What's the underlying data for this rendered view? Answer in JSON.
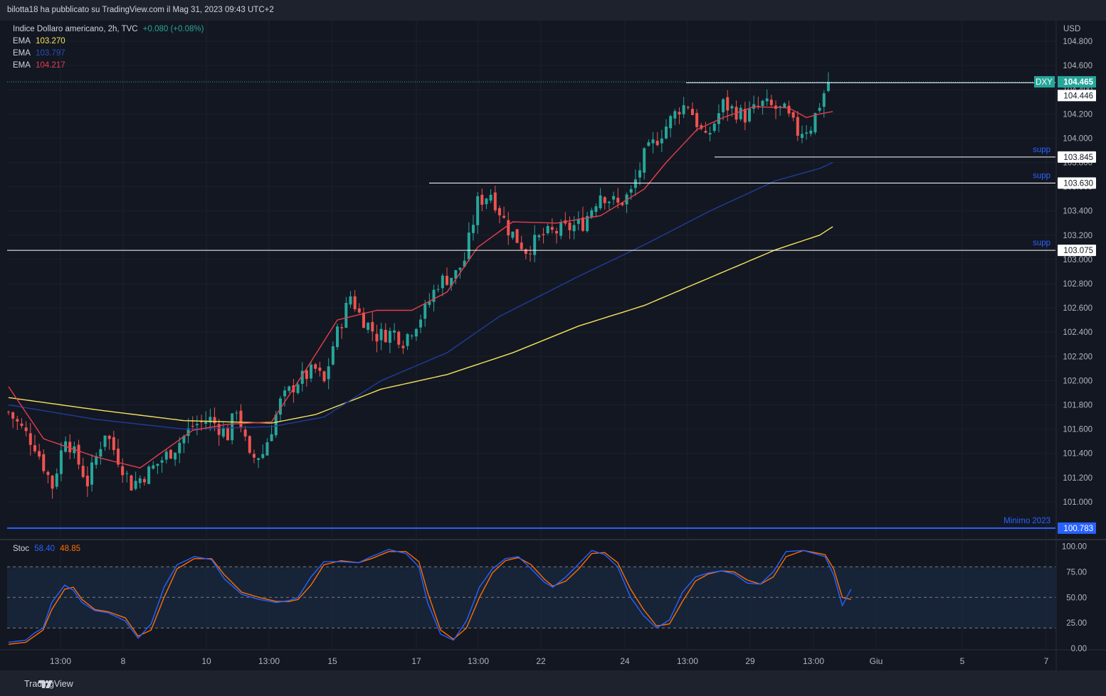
{
  "header": {
    "published_by": "bilotta18 ha pubblicato su TradingView.com il Mag 31, 2023 09:43 UTC+2"
  },
  "footer": {
    "brand": "TradingView"
  },
  "colors": {
    "background": "#131722",
    "up": "#26a69a",
    "down": "#ef5350",
    "ema_yellow": "#f5e35d",
    "ema_blue": "#1f3d9a",
    "ema_red": "#e53e4b",
    "stoch_k": "#2962ff",
    "stoch_d": "#ff6d00",
    "support": "#2962ff"
  },
  "legend": {
    "symbol": "Indice Dollaro americano, 2h, TVC",
    "change": "+0.080 (+0.08%)",
    "ema_label": "EMA",
    "ema1": "103.270",
    "ema2": "103.797",
    "ema3": "104.217"
  },
  "stoch_legend": {
    "label": "Stoc",
    "k": "58.40",
    "d": "48.85"
  },
  "chart_data": [
    {
      "type": "candlestick",
      "title": "Indice Dollaro americano, 2h, TVC",
      "currency": "USD",
      "ylim": [
        100.78,
        104.92
      ],
      "y_ticks": [
        "104.800",
        "104.600",
        "104.400",
        "104.200",
        "104.000",
        "103.800",
        "103.600",
        "103.400",
        "103.200",
        "103.000",
        "102.800",
        "102.600",
        "102.400",
        "102.200",
        "102.000",
        "101.800",
        "101.600",
        "101.400",
        "101.200",
        "101.000"
      ],
      "x_ticks": [
        "13:00",
        "8",
        "10",
        "13:00",
        "15",
        "17",
        "13:00",
        "22",
        "24",
        "13:00",
        "29",
        "13:00",
        "Giu",
        "5",
        "7"
      ],
      "price_label": {
        "symbol": "DXY",
        "last": "104.465",
        "line": "104.446"
      },
      "ema_anchor_points": {
        "ema_yellow": [
          [
            0,
            101.86
          ],
          [
            20,
            101.76
          ],
          [
            40,
            101.67
          ],
          [
            60,
            101.65
          ],
          [
            70,
            101.72
          ],
          [
            85,
            101.93
          ],
          [
            100,
            102.05
          ],
          [
            115,
            102.23
          ],
          [
            130,
            102.45
          ],
          [
            145,
            102.62
          ],
          [
            160,
            102.85
          ],
          [
            175,
            103.08
          ],
          [
            185,
            103.2
          ],
          [
            188,
            103.27
          ]
        ],
        "ema_blue": [
          [
            0,
            101.8
          ],
          [
            20,
            101.68
          ],
          [
            40,
            101.6
          ],
          [
            60,
            101.62
          ],
          [
            72,
            101.7
          ],
          [
            85,
            102.0
          ],
          [
            100,
            102.23
          ],
          [
            112,
            102.53
          ],
          [
            130,
            102.86
          ],
          [
            145,
            103.12
          ],
          [
            160,
            103.4
          ],
          [
            175,
            103.65
          ],
          [
            185,
            103.75
          ],
          [
            188,
            103.8
          ]
        ],
        "ema_red": [
          [
            0,
            101.95
          ],
          [
            8,
            101.52
          ],
          [
            20,
            101.37
          ],
          [
            30,
            101.28
          ],
          [
            42,
            101.59
          ],
          [
            50,
            101.64
          ],
          [
            60,
            101.66
          ],
          [
            68,
            102.1
          ],
          [
            75,
            102.5
          ],
          [
            84,
            102.58
          ],
          [
            92,
            102.58
          ],
          [
            100,
            102.73
          ],
          [
            107,
            103.1
          ],
          [
            115,
            103.31
          ],
          [
            125,
            103.3
          ],
          [
            135,
            103.36
          ],
          [
            145,
            103.58
          ],
          [
            150,
            103.8
          ],
          [
            157,
            104.07
          ],
          [
            163,
            104.17
          ],
          [
            170,
            104.26
          ],
          [
            178,
            104.25
          ],
          [
            182,
            104.17
          ],
          [
            185,
            104.2
          ],
          [
            188,
            104.22
          ]
        ]
      },
      "ohlc_anchor_points": [
        [
          0,
          101.74
        ],
        [
          6,
          101.47
        ],
        [
          10,
          101.13
        ],
        [
          13,
          101.55
        ],
        [
          18,
          101.16
        ],
        [
          22,
          101.58
        ],
        [
          28,
          101.14
        ],
        [
          32,
          101.25
        ],
        [
          38,
          101.45
        ],
        [
          42,
          101.63
        ],
        [
          46,
          101.68
        ],
        [
          50,
          101.55
        ],
        [
          52,
          101.78
        ],
        [
          55,
          101.35
        ],
        [
          58,
          101.4
        ],
        [
          62,
          101.82
        ],
        [
          66,
          102.0
        ],
        [
          70,
          102.09
        ],
        [
          72,
          101.98
        ],
        [
          74,
          102.29
        ],
        [
          78,
          102.7
        ],
        [
          80,
          102.55
        ],
        [
          84,
          102.37
        ],
        [
          88,
          102.4
        ],
        [
          90,
          102.33
        ],
        [
          95,
          102.58
        ],
        [
          98,
          102.81
        ],
        [
          102,
          102.88
        ],
        [
          104,
          103.0
        ],
        [
          107,
          103.47
        ],
        [
          110,
          103.55
        ],
        [
          114,
          103.25
        ],
        [
          118,
          103.08
        ],
        [
          122,
          103.2
        ],
        [
          127,
          103.25
        ],
        [
          131,
          103.3
        ],
        [
          135,
          103.55
        ],
        [
          139,
          103.45
        ],
        [
          142,
          103.55
        ],
        [
          145,
          103.85
        ],
        [
          149,
          104.05
        ],
        [
          153,
          104.25
        ],
        [
          155,
          104.28
        ],
        [
          159,
          103.98
        ],
        [
          163,
          104.28
        ],
        [
          168,
          104.18
        ],
        [
          172,
          104.28
        ],
        [
          177,
          104.22
        ],
        [
          180,
          104.05
        ],
        [
          183,
          104.1
        ],
        [
          187,
          104.465
        ]
      ],
      "annotations": [
        {
          "label": "supp",
          "level_label": "103.845"
        },
        {
          "label": "supp",
          "level_label": "103.630"
        },
        {
          "label": "supp",
          "level_label": "103.075"
        },
        {
          "label": "Minimo 2023",
          "level_label": "100.783"
        }
      ]
    },
    {
      "type": "line",
      "title": "Stoc",
      "ylim": [
        0,
        100
      ],
      "y_ticks": [
        "100.00",
        "75.00",
        "50.00",
        "25.00",
        "0.00"
      ],
      "band": [
        20,
        80
      ],
      "series": [
        {
          "name": "58.40",
          "anchor_points": [
            [
              0,
              6
            ],
            [
              4,
              8
            ],
            [
              6,
              15
            ],
            [
              8,
              20
            ],
            [
              10,
              45
            ],
            [
              13,
              62
            ],
            [
              15,
              57
            ],
            [
              17,
              45
            ],
            [
              20,
              37
            ],
            [
              23,
              35
            ],
            [
              27,
              27
            ],
            [
              30,
              10
            ],
            [
              33,
              24
            ],
            [
              36,
              60
            ],
            [
              39,
              82
            ],
            [
              43,
              90
            ],
            [
              47,
              87
            ],
            [
              50,
              68
            ],
            [
              54,
              53
            ],
            [
              58,
              48
            ],
            [
              62,
              45
            ],
            [
              65,
              47
            ],
            [
              67,
              50
            ],
            [
              70,
              70
            ],
            [
              73,
              85
            ],
            [
              77,
              85
            ],
            [
              81,
              84
            ],
            [
              84,
              90
            ],
            [
              88,
              97
            ],
            [
              92,
              93
            ],
            [
              95,
              80
            ],
            [
              97,
              45
            ],
            [
              100,
              14
            ],
            [
              103,
              8
            ],
            [
              106,
              27
            ],
            [
              109,
              60
            ],
            [
              112,
              78
            ],
            [
              115,
              88
            ],
            [
              118,
              90
            ],
            [
              121,
              78
            ],
            [
              124,
              65
            ],
            [
              126,
              60
            ],
            [
              129,
              70
            ],
            [
              132,
              83
            ],
            [
              135,
              96
            ],
            [
              138,
              92
            ],
            [
              141,
              80
            ],
            [
              144,
              50
            ],
            [
              147,
              32
            ],
            [
              150,
              20
            ],
            [
              153,
              28
            ],
            [
              156,
              55
            ],
            [
              159,
              70
            ],
            [
              162,
              74
            ],
            [
              165,
              76
            ],
            [
              168,
              73
            ],
            [
              171,
              64
            ],
            [
              174,
              63
            ],
            [
              177,
              75
            ],
            [
              180,
              95
            ],
            [
              184,
              96
            ],
            [
              189,
              90
            ],
            [
              191,
              72
            ],
            [
              193,
              42
            ],
            [
              195,
              58
            ]
          ]
        },
        {
          "name": "48.85",
          "anchor_points": [
            [
              0,
              4
            ],
            [
              4,
              6
            ],
            [
              6,
              12
            ],
            [
              8,
              18
            ],
            [
              10,
              38
            ],
            [
              13,
              58
            ],
            [
              15,
              60
            ],
            [
              17,
              48
            ],
            [
              20,
              38
            ],
            [
              23,
              36
            ],
            [
              27,
              30
            ],
            [
              30,
              12
            ],
            [
              33,
              18
            ],
            [
              36,
              50
            ],
            [
              39,
              78
            ],
            [
              43,
              88
            ],
            [
              47,
              88
            ],
            [
              50,
              72
            ],
            [
              54,
              55
            ],
            [
              58,
              50
            ],
            [
              62,
              46
            ],
            [
              65,
              46
            ],
            [
              67,
              48
            ],
            [
              70,
              62
            ],
            [
              73,
              82
            ],
            [
              77,
              86
            ],
            [
              81,
              84
            ],
            [
              84,
              88
            ],
            [
              88,
              95
            ],
            [
              92,
              95
            ],
            [
              95,
              85
            ],
            [
              97,
              55
            ],
            [
              100,
              18
            ],
            [
              103,
              9
            ],
            [
              106,
              20
            ],
            [
              109,
              50
            ],
            [
              112,
              74
            ],
            [
              115,
              86
            ],
            [
              118,
              89
            ],
            [
              121,
              82
            ],
            [
              124,
              68
            ],
            [
              126,
              61
            ],
            [
              129,
              66
            ],
            [
              132,
              78
            ],
            [
              135,
              93
            ],
            [
              138,
              94
            ],
            [
              141,
              84
            ],
            [
              144,
              58
            ],
            [
              147,
              38
            ],
            [
              150,
              22
            ],
            [
              153,
              24
            ],
            [
              156,
              46
            ],
            [
              159,
              66
            ],
            [
              162,
              73
            ],
            [
              165,
              76
            ],
            [
              168,
              75
            ],
            [
              171,
              67
            ],
            [
              174,
              63
            ],
            [
              177,
              70
            ],
            [
              180,
              90
            ],
            [
              184,
              96
            ],
            [
              189,
              92
            ],
            [
              191,
              78
            ],
            [
              193,
              50
            ],
            [
              195,
              48
            ]
          ]
        }
      ]
    }
  ]
}
